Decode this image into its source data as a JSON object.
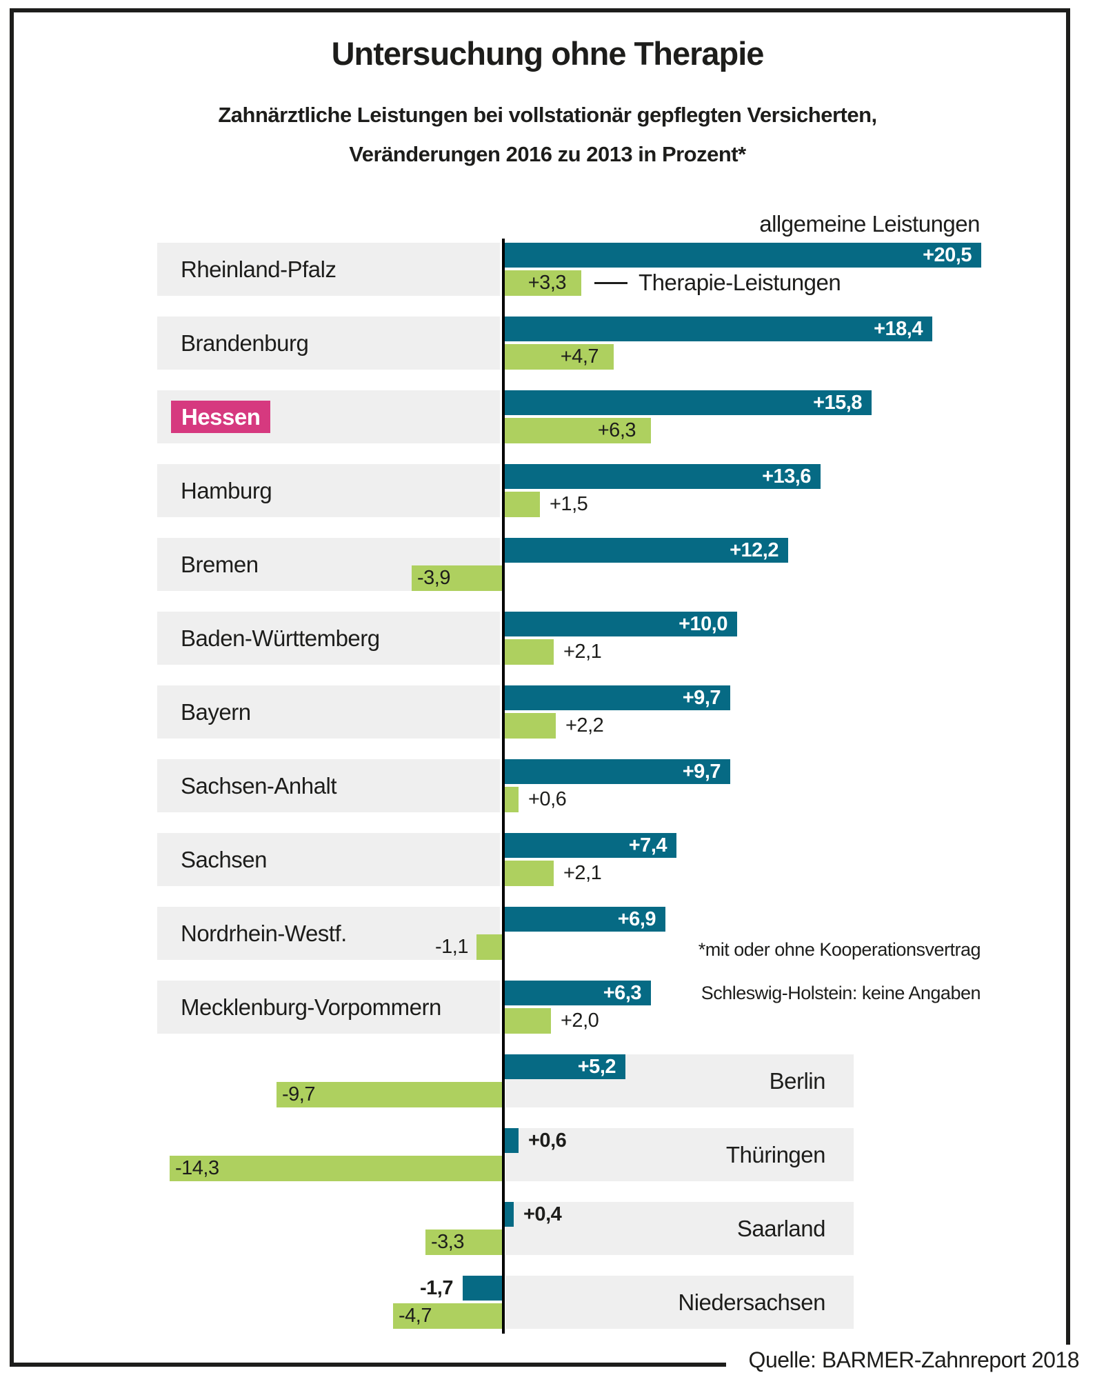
{
  "title": "Untersuchung ohne Therapie",
  "subtitle_line1": "Zahnärztliche Leistungen bei vollstationär gepflegten Versicherten,",
  "subtitle_line2": "Veränderungen 2016 zu 2013 in Prozent*",
  "series_labels": {
    "general": "allgemeine Leistungen",
    "therapy": "Therapie-Leistungen"
  },
  "notes": {
    "note1": "*mit oder ohne Kooperationsvertrag",
    "note2": "Schleswig-Holstein: keine Angaben"
  },
  "source": "Quelle: BARMER-Zahnreport 2018",
  "colors": {
    "general_bar": "#066a84",
    "therapy_bar": "#aed05f",
    "highlight": "#d6397f",
    "row_background": "#efefef",
    "text": "#1d1d1b"
  },
  "chart_data": {
    "type": "bar",
    "orientation": "horizontal",
    "title": "Untersuchung ohne Therapie",
    "unit": "Prozent",
    "value_note": "Veränderungen 2016 zu 2013",
    "highlighted_category": "Hessen",
    "series_names": [
      "allgemeine Leistungen",
      "Therapie-Leistungen"
    ],
    "states": [
      {
        "name": "Rheinland-Pfalz",
        "side": "left",
        "highlight": false,
        "general": 20.5,
        "general_label": "+20,5",
        "therapy": 3.3,
        "therapy_label": "+3,3"
      },
      {
        "name": "Brandenburg",
        "side": "left",
        "highlight": false,
        "general": 18.4,
        "general_label": "+18,4",
        "therapy": 4.7,
        "therapy_label": "+4,7"
      },
      {
        "name": "Hessen",
        "side": "left",
        "highlight": true,
        "general": 15.8,
        "general_label": "+15,8",
        "therapy": 6.3,
        "therapy_label": "+6,3"
      },
      {
        "name": "Hamburg",
        "side": "left",
        "highlight": false,
        "general": 13.6,
        "general_label": "+13,6",
        "therapy": 1.5,
        "therapy_label": "+1,5"
      },
      {
        "name": "Bremen",
        "side": "left",
        "highlight": false,
        "general": 12.2,
        "general_label": "+12,2",
        "therapy": -3.9,
        "therapy_label": "-3,9"
      },
      {
        "name": "Baden-Württemberg",
        "side": "left",
        "highlight": false,
        "general": 10.0,
        "general_label": "+10,0",
        "therapy": 2.1,
        "therapy_label": "+2,1"
      },
      {
        "name": "Bayern",
        "side": "left",
        "highlight": false,
        "general": 9.7,
        "general_label": "+9,7",
        "therapy": 2.2,
        "therapy_label": "+2,2"
      },
      {
        "name": "Sachsen-Anhalt",
        "side": "left",
        "highlight": false,
        "general": 9.7,
        "general_label": "+9,7",
        "therapy": 0.6,
        "therapy_label": "+0,6"
      },
      {
        "name": "Sachsen",
        "side": "left",
        "highlight": false,
        "general": 7.4,
        "general_label": "+7,4",
        "therapy": 2.1,
        "therapy_label": "+2,1"
      },
      {
        "name": "Nordrhein-Westf.",
        "side": "left",
        "highlight": false,
        "general": 6.9,
        "general_label": "+6,9",
        "therapy": -1.1,
        "therapy_label": "-1,1"
      },
      {
        "name": "Mecklenburg-Vorpommern",
        "side": "left",
        "highlight": false,
        "general": 6.3,
        "general_label": "+6,3",
        "therapy": 2.0,
        "therapy_label": "+2,0"
      },
      {
        "name": "Berlin",
        "side": "right",
        "highlight": false,
        "general": 5.2,
        "general_label": "+5,2",
        "therapy": -9.7,
        "therapy_label": "-9,7"
      },
      {
        "name": "Thüringen",
        "side": "right",
        "highlight": false,
        "general": 0.6,
        "general_label": "+0,6",
        "therapy": -14.3,
        "therapy_label": "-14,3"
      },
      {
        "name": "Saarland",
        "side": "right",
        "highlight": false,
        "general": 0.4,
        "general_label": "+0,4",
        "therapy": -3.3,
        "therapy_label": "-3,3"
      },
      {
        "name": "Niedersachsen",
        "side": "right",
        "highlight": false,
        "general": -1.7,
        "general_label": "-1,7",
        "therapy": -4.7,
        "therapy_label": "-4,7"
      }
    ]
  }
}
